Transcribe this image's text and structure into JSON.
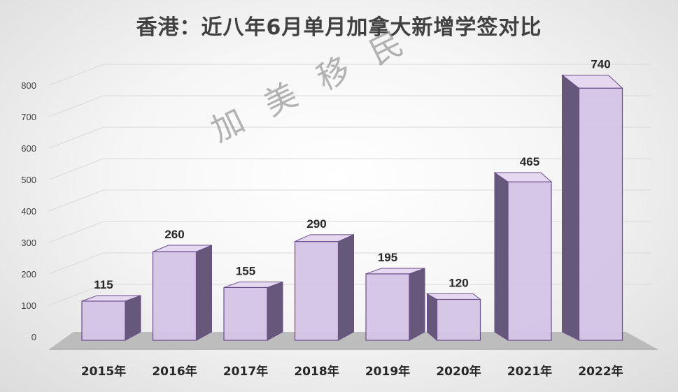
{
  "chart_data": {
    "type": "bar",
    "title": "香港：近八年6月单月加拿大新增学签对比",
    "categories": [
      "2015年",
      "2016年",
      "2017年",
      "2018年",
      "2019年",
      "2020年",
      "2021年",
      "2022年"
    ],
    "values": [
      115,
      260,
      155,
      290,
      195,
      120,
      465,
      740
    ],
    "y_ticks": [
      "0",
      "100",
      "200",
      "300",
      "400",
      "500",
      "600",
      "700",
      "800"
    ],
    "ylim": [
      0,
      800
    ],
    "xlabel": "",
    "ylabel": "",
    "grid": true,
    "legend": false,
    "colors": {
      "bar_front": "#d4c4e6",
      "bar_side": "#66587a",
      "bar_top": "#e4d9f0",
      "bar_stroke": "#6a4c8a",
      "floor": "#b4b4b4"
    }
  },
  "watermark": "加美移民"
}
